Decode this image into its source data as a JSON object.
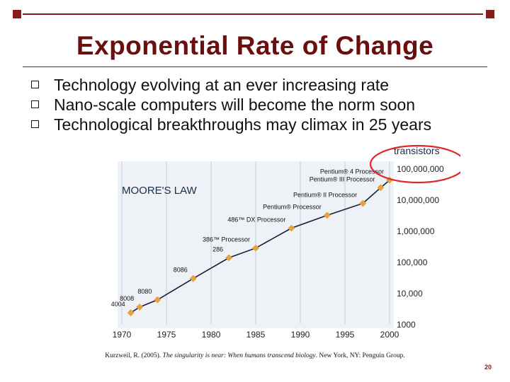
{
  "slide": {
    "title": "Exponential Rate of Change",
    "bullets": [
      "Technology evolving at an ever increasing rate",
      "Nano-scale computers will become the norm soon",
      "Technological breakthroughs may climax in 25 years"
    ],
    "citation_author": "Kurzweil, R. (2005).",
    "citation_title": "The singularity is near: When humans transcend biology",
    "citation_publisher": ". New York, NY: Penguin Group.",
    "page_number": "20",
    "accent_color": "#8b1a1a",
    "title_color": "#6b0e0e"
  },
  "chart_data": {
    "type": "line",
    "title": "MOORE'S LAW",
    "y_axis_title": "transistors",
    "x_ticks": [
      "1970",
      "1975",
      "1980",
      "1985",
      "1990",
      "1995",
      "2000"
    ],
    "y_ticks": [
      "1000",
      "10,000",
      "100,000",
      "1,000,000",
      "10,000,000",
      "100,000,000"
    ],
    "y_scale": "log",
    "xlim": [
      1970,
      2000
    ],
    "ylim": [
      1000,
      100000000
    ],
    "line_color": "#1a1a3a",
    "point_color": "#e6a23c",
    "highlight_color": "#e0262b",
    "points": [
      {
        "label": "4004",
        "x": 1971,
        "y": 2300
      },
      {
        "label": "8008",
        "x": 1972,
        "y": 3500
      },
      {
        "label": "8080",
        "x": 1974,
        "y": 6000
      },
      {
        "label": "8086",
        "x": 1978,
        "y": 29000
      },
      {
        "label": "286",
        "x": 1982,
        "y": 134000
      },
      {
        "label": "386™ Processor",
        "x": 1985,
        "y": 275000
      },
      {
        "label": "486™ DX Processor",
        "x": 1989,
        "y": 1200000
      },
      {
        "label": "Pentium® Processor",
        "x": 1993,
        "y": 3100000
      },
      {
        "label": "Pentium® II Processor",
        "x": 1997,
        "y": 7500000
      },
      {
        "label": "Pentium® III Processor",
        "x": 1999,
        "y": 24000000
      },
      {
        "label": "Pentium® 4 Processor",
        "x": 2000,
        "y": 42000000
      }
    ]
  }
}
